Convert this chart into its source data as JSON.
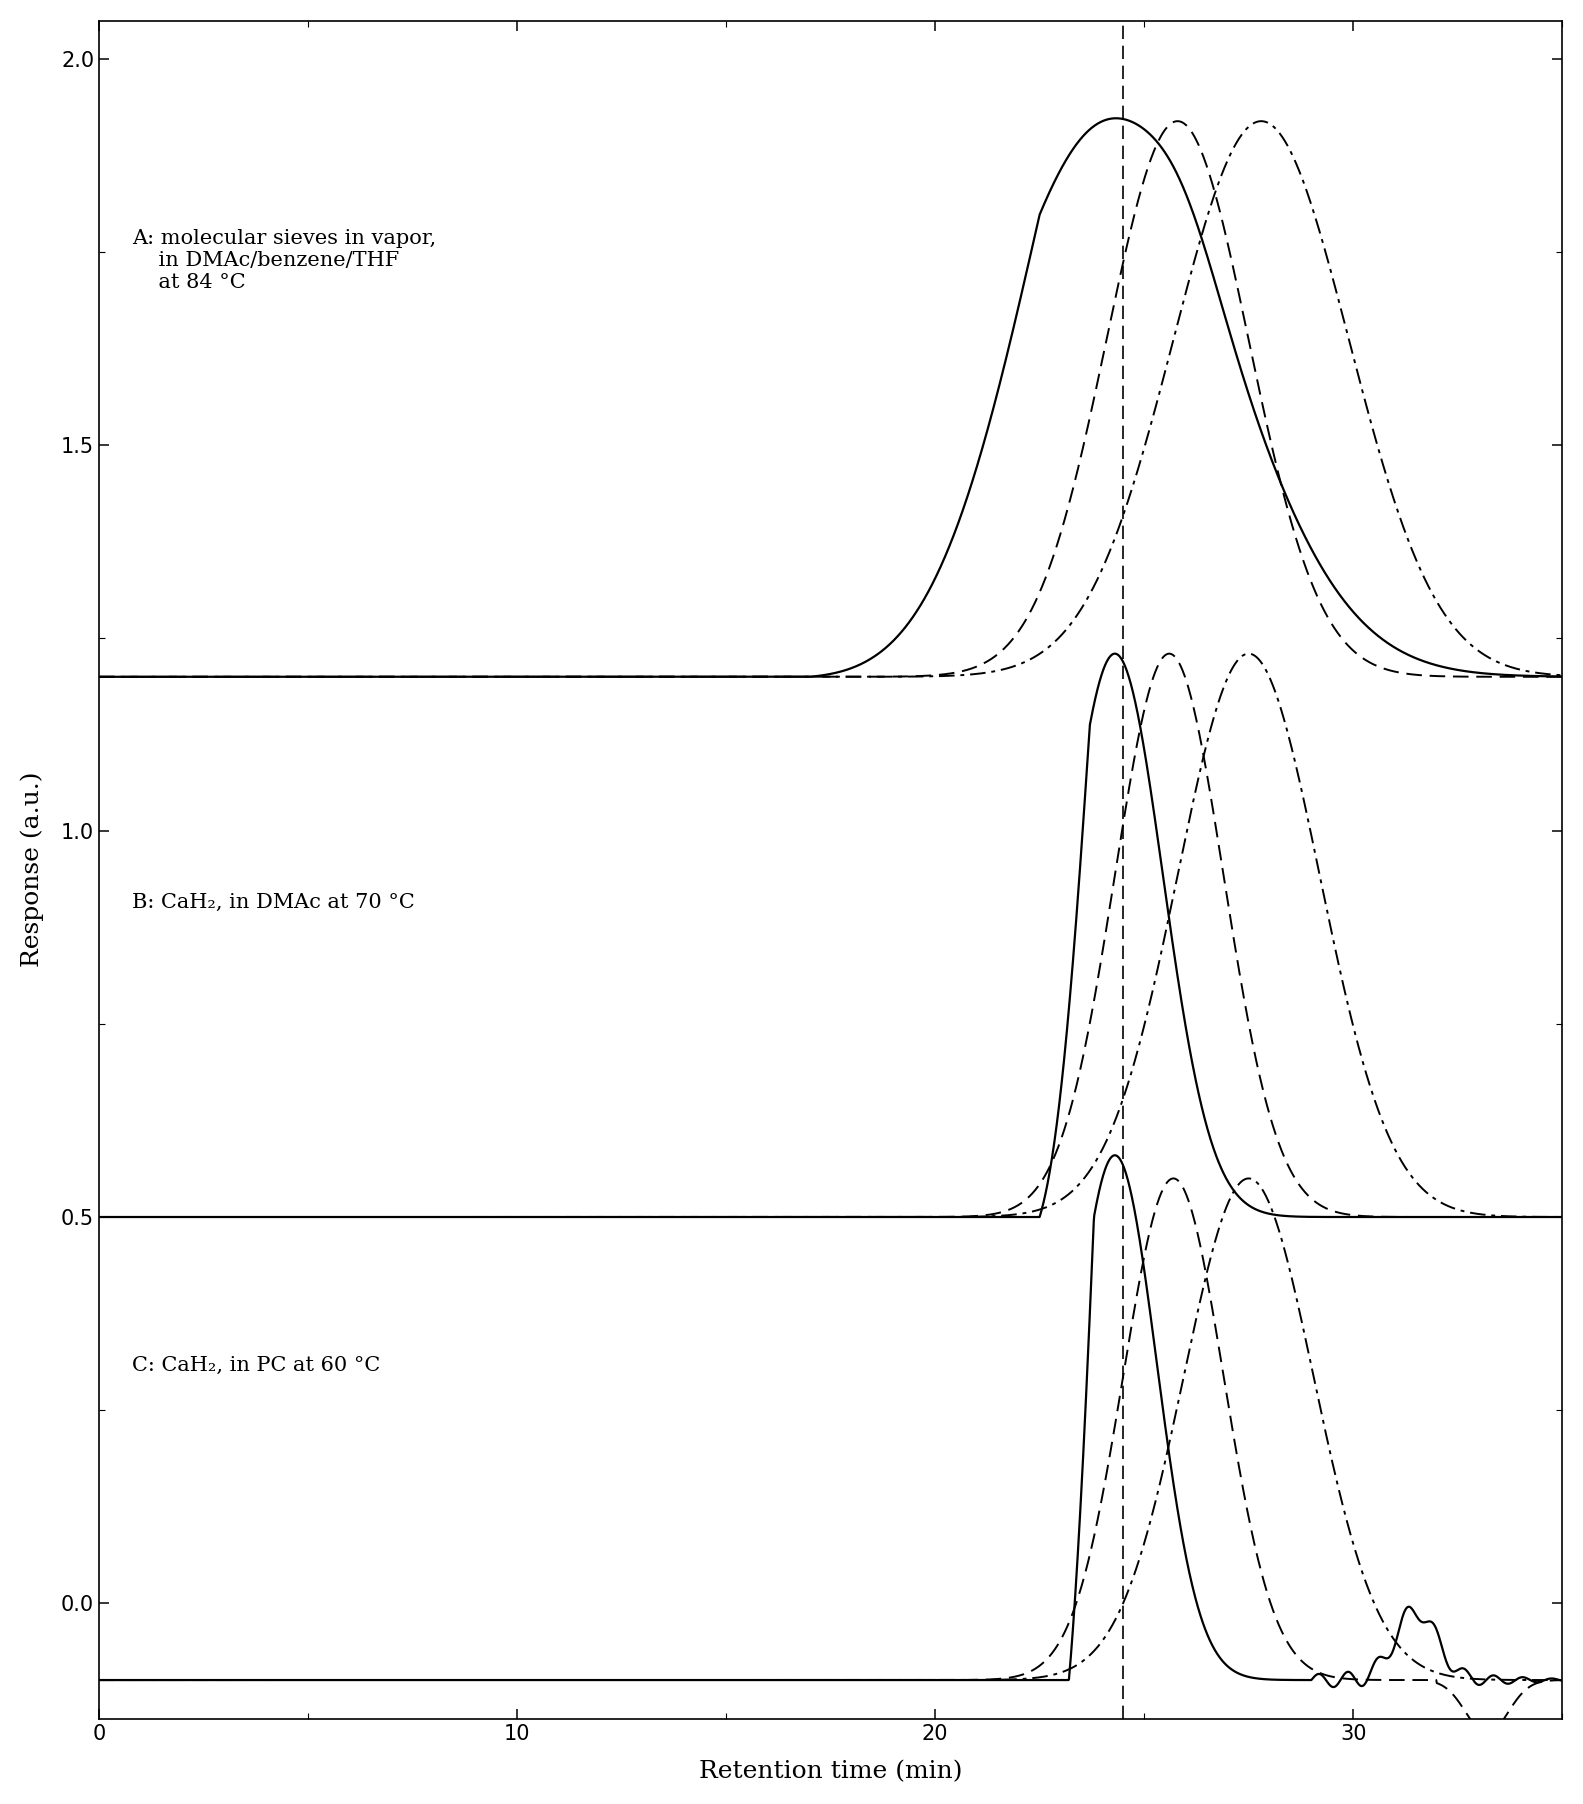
{
  "title": "",
  "xlabel": "Retention time (min)",
  "ylabel": "Response (a.u.)",
  "xlim": [
    0,
    35
  ],
  "ylim": [
    -0.15,
    2.05
  ],
  "yticks": [
    0.0,
    0.5,
    1.0,
    1.5,
    2.0
  ],
  "xticks": [
    0,
    10,
    20,
    30
  ],
  "reference_line_x": 24.5,
  "label_A": "A: molecular sieves in vapor,\n    in DMAc/benzene/THF\n    at 84 °C",
  "label_B": "B: CaH₂, in DMAc at 70 °C",
  "label_C": "C: CaH₂, in PC at 60 °C",
  "baseline_A": 1.2,
  "baseline_B": 0.5,
  "baseline_C": -0.1,
  "figsize": [
    15.83,
    18.04
  ],
  "dpi": 100
}
